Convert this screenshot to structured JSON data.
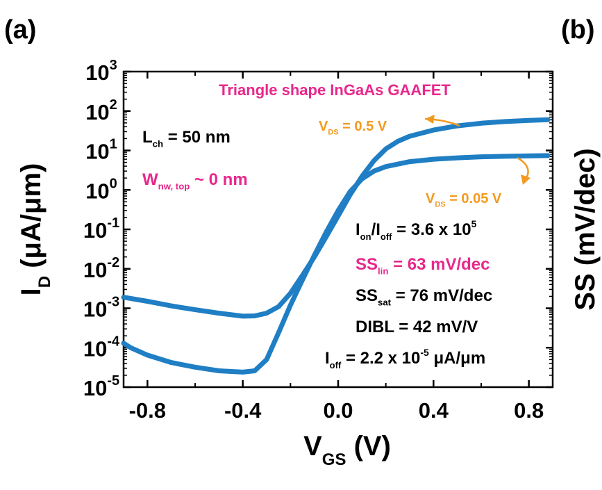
{
  "panels": {
    "left": "(a)",
    "right": "(b)"
  },
  "right_axis": {
    "label": "SS (mV/dec)"
  },
  "colors": {
    "curve": "#1f7ec4",
    "magenta": "#e8288c",
    "orange": "#f39a1e",
    "axis": "#000000"
  },
  "chart_data": {
    "type": "line",
    "title": "Triangle shape InGaAs GAAFET",
    "xlabel": {
      "main": "V",
      "sub": "GS",
      "unit": " (V)"
    },
    "ylabel": {
      "main": "I",
      "sub": "D",
      "unit": " (μA/μm)"
    },
    "xlim": [
      -0.9,
      0.9
    ],
    "ylim_log10": [
      -5,
      3
    ],
    "yscale": "log",
    "x_ticks": [
      -0.8,
      -0.4,
      0.0,
      0.4,
      0.8
    ],
    "x_tick_labels": [
      "-0.8",
      "-0.4",
      "0.0",
      "0.4",
      "0.8"
    ],
    "y_ticks": [
      {
        "base": "10",
        "exp": "3"
      },
      {
        "base": "10",
        "exp": "2"
      },
      {
        "base": "10",
        "exp": "1"
      },
      {
        "base": "10",
        "exp": "0"
      },
      {
        "base": "10",
        "exp": "-1"
      },
      {
        "base": "10",
        "exp": "-2"
      },
      {
        "base": "10",
        "exp": "-3"
      },
      {
        "base": "10",
        "exp": "-4"
      },
      {
        "base": "10",
        "exp": "-5"
      }
    ],
    "series": [
      {
        "name": "V_DS = 0.5 V",
        "x": [
          -0.9,
          -0.8,
          -0.7,
          -0.6,
          -0.5,
          -0.4,
          -0.35,
          -0.3,
          -0.25,
          -0.2,
          -0.15,
          -0.1,
          -0.05,
          0.0,
          0.05,
          0.1,
          0.15,
          0.2,
          0.25,
          0.3,
          0.4,
          0.5,
          0.6,
          0.7,
          0.8,
          0.88
        ],
        "y": [
          0.0019,
          0.0015,
          0.00115,
          0.00092,
          0.00075,
          0.00063,
          0.00064,
          0.00075,
          0.0011,
          0.0024,
          0.0068,
          0.02,
          0.065,
          0.22,
          0.75,
          2.2,
          5.5,
          11,
          17,
          23,
          33,
          42,
          49,
          54,
          58,
          60
        ]
      },
      {
        "name": "V_DS = 0.05 V",
        "x": [
          -0.9,
          -0.87,
          -0.8,
          -0.7,
          -0.6,
          -0.5,
          -0.4,
          -0.35,
          -0.3,
          -0.25,
          -0.2,
          -0.15,
          -0.1,
          -0.05,
          0.0,
          0.05,
          0.1,
          0.15,
          0.2,
          0.3,
          0.4,
          0.5,
          0.6,
          0.7,
          0.8,
          0.88
        ],
        "y": [
          0.00013,
          0.0001,
          6.5e-05,
          4.2e-05,
          3.2e-05,
          2.6e-05,
          2.4e-05,
          2.6e-05,
          5e-05,
          0.00024,
          0.0012,
          0.0052,
          0.022,
          0.085,
          0.3,
          0.9,
          1.9,
          3.0,
          3.9,
          5.2,
          6.0,
          6.5,
          6.9,
          7.1,
          7.3,
          7.4
        ]
      }
    ],
    "annotations": {
      "lch": {
        "main": "L",
        "sub": "ch",
        "rest": " = 50 nm"
      },
      "wnw": {
        "main": "W",
        "sub": "nw, top",
        "rest": " ~ 0 nm"
      },
      "vds_high": {
        "main": "V",
        "sub": "DS",
        "rest": " = 0.5 V"
      },
      "vds_low": {
        "main": "V",
        "sub": "DS",
        "rest": " = 0.05 V"
      },
      "ion_ioff": {
        "a": "I",
        "asub": "on",
        "b": "/I",
        "bsub": "off",
        "rest": " = 3.6 x 10",
        "sup": "5"
      },
      "ss_lin": {
        "main": "SS",
        "sub": "lin",
        "rest": " = 63 mV/dec"
      },
      "ss_sat": {
        "main": "SS",
        "sub": "sat",
        "rest": " = 76 mV/dec"
      },
      "dibl": {
        "text": "DIBL = 42 mV/V"
      },
      "ioff": {
        "main": "I",
        "sub": "off",
        "rest": " = 2.2 x 10",
        "sup": "-5",
        "tail": " μA/μm"
      }
    }
  }
}
